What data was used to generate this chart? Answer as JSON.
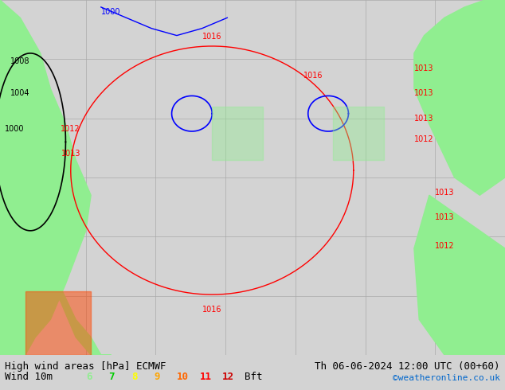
{
  "title_left": "High wind areas [hPa] ECMWF",
  "title_right": "Th 06-06-2024 12:00 UTC (00+60)",
  "legend_label": "Wind 10m",
  "legend_values": [
    "6",
    "7",
    "8",
    "9",
    "10",
    "11",
    "12"
  ],
  "legend_colors": [
    "#90ee90",
    "#00cc00",
    "#ffff00",
    "#ffa500",
    "#ff6600",
    "#ff0000",
    "#cc0000"
  ],
  "legend_suffix": "Bft",
  "credit": "©weatheronline.co.uk",
  "bg_color": "#d3d3d3",
  "land_color": "#90ee90",
  "map_bg": "#ffffff",
  "grid_color": "#aaaaaa",
  "isobar_color_black": "#000000",
  "isobar_color_blue": "#0000ff",
  "isobar_color_red": "#ff0000",
  "highlight_color": "#90ee90",
  "font_size_title": 9,
  "font_size_legend": 9,
  "font_size_credit": 8,
  "bottom_bar_height": 0.09,
  "figsize": [
    6.34,
    4.9
  ],
  "dpi": 100
}
